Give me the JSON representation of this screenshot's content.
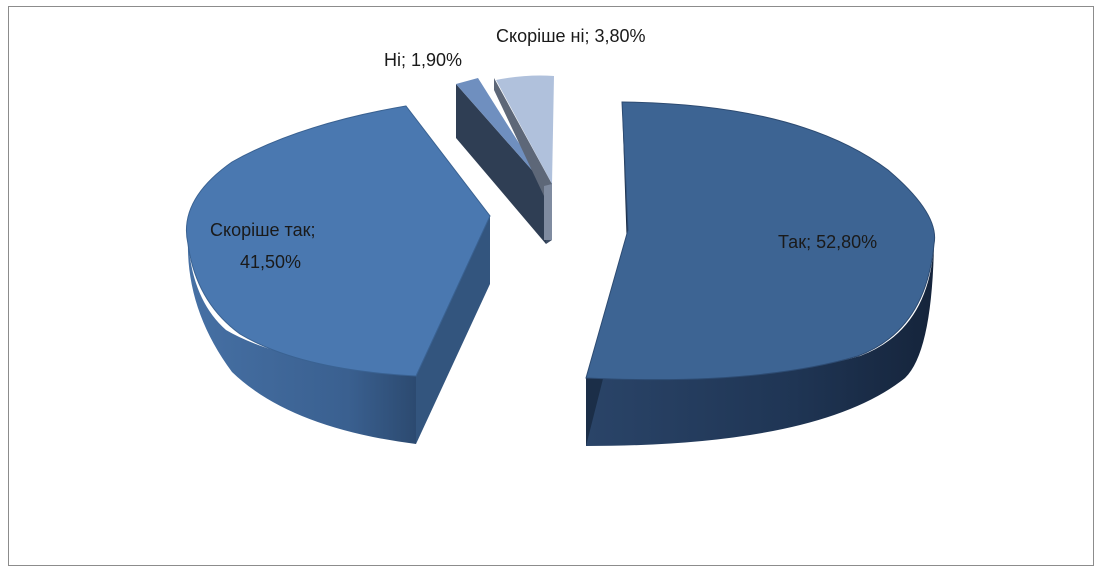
{
  "chart_data": {
    "type": "pie",
    "categories": [
      "Так",
      "Скоріше так",
      "Ні",
      "Скоріше ні"
    ],
    "values": [
      52.8,
      41.5,
      1.9,
      3.8
    ],
    "labels": [
      "Так; 52,80%",
      "Скоріше так;",
      "41,50%",
      "Ні; 1,90%",
      "Скоріше ні; 3,80%"
    ],
    "title": "",
    "legend": "none",
    "style": "3d-exploded"
  },
  "colors": {
    "tak_top": "#3d6493",
    "tak_side": "#1e3553",
    "skorishe_tak_top": "#4a78b0",
    "skorishe_tak_side": "#34567f",
    "ni_top": "#6f8fbf",
    "ni_side": "#2f3e54",
    "skorishe_ni_top": "#b0c1dc",
    "skorishe_ni_side": "#5d6778"
  }
}
